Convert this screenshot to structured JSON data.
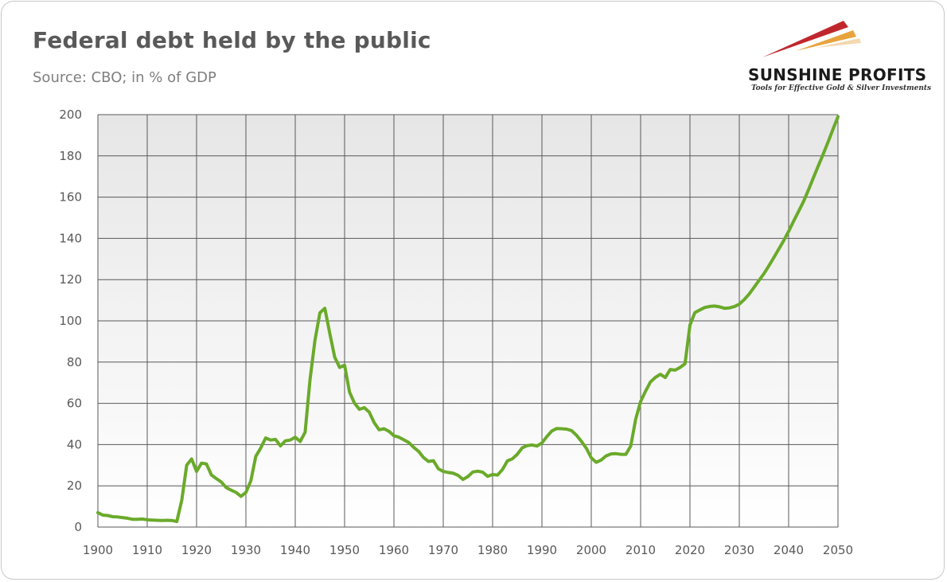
{
  "header": {
    "title": "Federal debt held by the public",
    "subtitle": "Source: CBO; in % of GDP"
  },
  "logo": {
    "brand": "SUNSHINE PROFITS",
    "tagline": "Tools for Effective Gold & Silver Investments",
    "colors": [
      "#c0272d",
      "#e8a33d",
      "#f3d9b0"
    ]
  },
  "chart_data": {
    "type": "line",
    "title": "Federal debt held by the public",
    "subtitle": "Source: CBO; in % of GDP",
    "xlabel": "",
    "ylabel": "",
    "xlim": [
      1900,
      2050
    ],
    "ylim": [
      0,
      200
    ],
    "x_ticks": [
      1900,
      1910,
      1920,
      1930,
      1940,
      1950,
      1960,
      1970,
      1980,
      1990,
      2000,
      2010,
      2020,
      2030,
      2040,
      2050
    ],
    "y_ticks": [
      0,
      20,
      40,
      60,
      80,
      100,
      120,
      140,
      160,
      180,
      200
    ],
    "grid": true,
    "legend": "none",
    "line_color": "#6aaa2a",
    "series": [
      {
        "x": [
          1900,
          1901,
          1902,
          1903,
          1904,
          1905,
          1906,
          1907,
          1908,
          1909,
          1910,
          1911,
          1912,
          1913,
          1914,
          1915,
          1916,
          1917,
          1918,
          1919,
          1920,
          1921,
          1922,
          1923,
          1924,
          1925,
          1926,
          1927,
          1928,
          1929,
          1930,
          1931,
          1932,
          1933,
          1934,
          1935,
          1936,
          1937,
          1938,
          1939,
          1940,
          1941,
          1942,
          1943,
          1944,
          1945,
          1946,
          1947,
          1948,
          1949,
          1950,
          1951,
          1952,
          1953,
          1954,
          1955,
          1956,
          1957,
          1958,
          1959,
          1960,
          1961,
          1962,
          1963,
          1964,
          1965,
          1966,
          1967,
          1968,
          1969,
          1970,
          1971,
          1972,
          1973,
          1974,
          1975,
          1976,
          1977,
          1978,
          1979,
          1980,
          1981,
          1982,
          1983,
          1984,
          1985,
          1986,
          1987,
          1988,
          1989,
          1990,
          1991,
          1992,
          1993,
          1994,
          1995,
          1996,
          1997,
          1998,
          1999,
          2000,
          2001,
          2002,
          2003,
          2004,
          2005,
          2006,
          2007,
          2008,
          2009,
          2010,
          2011,
          2012,
          2013,
          2014,
          2015,
          2016,
          2017,
          2018,
          2019,
          2020,
          2021,
          2022,
          2023,
          2024,
          2025,
          2026,
          2027,
          2028,
          2029,
          2030,
          2031,
          2032,
          2033,
          2034,
          2035,
          2036,
          2037,
          2038,
          2039,
          2040,
          2041,
          2042,
          2043,
          2044,
          2045,
          2046,
          2047,
          2048,
          2049,
          2050
        ],
        "values": [
          7,
          5.8,
          5.6,
          5,
          4.9,
          4.6,
          4.3,
          3.8,
          3.8,
          3.9,
          3.5,
          3.4,
          3.3,
          3.2,
          3.3,
          3.2,
          2.7,
          13,
          30,
          33,
          27,
          31,
          30.6,
          25.3,
          23.5,
          21.9,
          19.2,
          17.9,
          16.8,
          14.9,
          16.8,
          22.4,
          34.3,
          38.3,
          43.2,
          42.2,
          42.5,
          39.4,
          41.8,
          42.2,
          43.6,
          41.5,
          46,
          71.6,
          90.6,
          103.9,
          106.1,
          93.9,
          82.4,
          77.4,
          78.5,
          65.5,
          60.1,
          57.1,
          57.9,
          55.7,
          50.6,
          47.2,
          47.7,
          46.4,
          44.3,
          43.6,
          42.3,
          41,
          38.7,
          36.7,
          33.7,
          31.8,
          32.2,
          28.3,
          27,
          26.5,
          26.1,
          25.1,
          23.1,
          24.5,
          26.7,
          27.1,
          26.6,
          24.6,
          25.5,
          25.2,
          27.9,
          32.1,
          33.1,
          35.3,
          38.4,
          39.5,
          39.8,
          39.3,
          40.8,
          43.9,
          46.6,
          47.8,
          47.7,
          47.5,
          46.8,
          44.5,
          41.6,
          38.2,
          33.6,
          31.4,
          32.5,
          34.5,
          35.5,
          35.6,
          35.3,
          35.2,
          39.3,
          52.3,
          60.9,
          65.9,
          70.4,
          72.6,
          74.1,
          72.5,
          76.4,
          76.1,
          77.4,
          79.2,
          98,
          104,
          105.3,
          106.5,
          107,
          107.2,
          106.8,
          106.1,
          106.3,
          106.9,
          108.1,
          110.3,
          113,
          116.3,
          119.6,
          122.9,
          126.7,
          130.7,
          134.8,
          138.9,
          143.4,
          148.3,
          153,
          157.8,
          163.4,
          169.3,
          175.1,
          180.8,
          186.8,
          193,
          199
        ]
      }
    ]
  }
}
